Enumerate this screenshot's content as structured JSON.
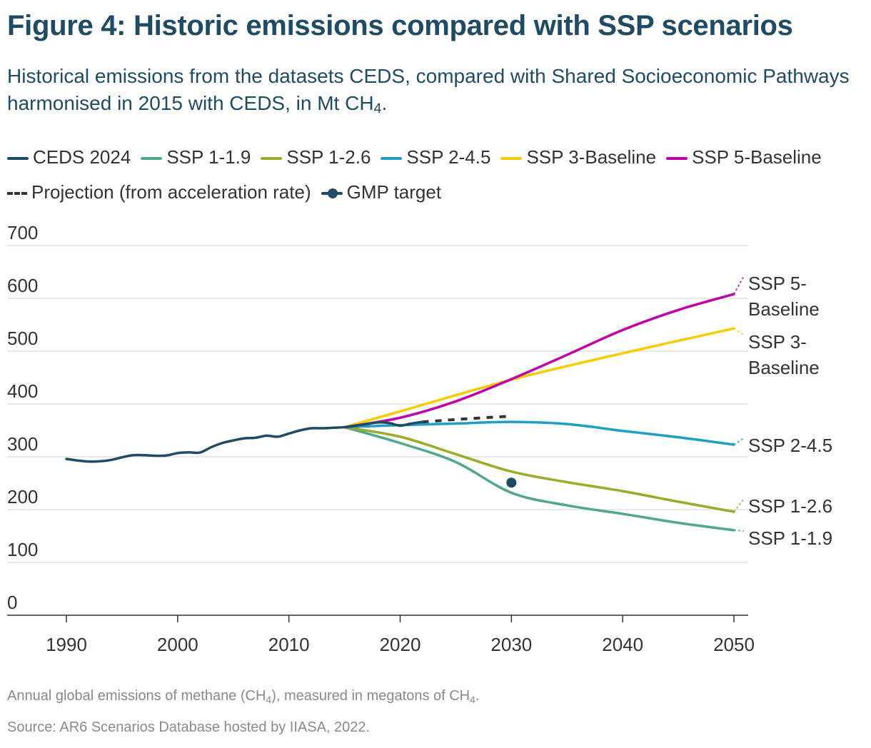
{
  "header": {
    "title": "Figure 4: Historic emissions compared with SSP scenarios",
    "subtitle_pre": "Historical emissions from the datasets CEDS, compared with Shared Socioeconomic Pathways harmonised in 2015 with CEDS, in Mt CH",
    "subtitle_sub": "4",
    "subtitle_post": "."
  },
  "footer": {
    "note_pre": "Annual global emissions of methane (CH",
    "note_sub1": "4",
    "note_mid": "), measured in megatons of CH",
    "note_sub2": "4",
    "note_post": ".",
    "source": "Source: AR6 Scenarios Database hosted by IIASA, 2022."
  },
  "chart_data": {
    "type": "line",
    "title": "Figure 4: Historic emissions compared with SSP scenarios",
    "xlabel": "",
    "ylabel": "",
    "xlim": [
      1990,
      2050
    ],
    "ylim": [
      0,
      700
    ],
    "xticks": [
      1990,
      2000,
      2010,
      2020,
      2030,
      2040,
      2050
    ],
    "yticks": [
      0,
      100,
      200,
      300,
      400,
      500,
      600,
      700
    ],
    "grid": "horizontal",
    "legend": "top",
    "series": [
      {
        "name": "CEDS 2024",
        "color": "#1f4b63",
        "style": "solid",
        "end_label": "",
        "x": [
          1990,
          1991,
          1992,
          1993,
          1994,
          1995,
          1996,
          1997,
          1998,
          1999,
          2000,
          2001,
          2002,
          2003,
          2004,
          2005,
          2006,
          2007,
          2008,
          2009,
          2010,
          2011,
          2012,
          2013,
          2014,
          2015,
          2016,
          2017,
          2018,
          2019,
          2020,
          2021,
          2022
        ],
        "y": [
          296,
          293,
          291,
          291.5,
          294,
          299,
          303,
          303,
          302,
          302.5,
          307,
          308.5,
          308,
          318,
          326,
          331,
          335,
          336,
          340,
          338,
          344,
          350,
          354,
          354,
          355,
          356,
          359,
          362,
          365,
          364,
          359,
          363,
          366
        ]
      },
      {
        "name": "SSP 1-1.9",
        "color": "#4fa88a",
        "style": "solid",
        "end_label": "SSP 1-1.9",
        "x": [
          2015,
          2020,
          2025,
          2030,
          2035,
          2040,
          2045,
          2050
        ],
        "y": [
          356,
          326,
          290,
          232,
          208,
          192,
          175,
          161
        ]
      },
      {
        "name": "SSP 1-2.6",
        "color": "#9aad2a",
        "style": "solid",
        "end_label": "SSP 1-2.6",
        "x": [
          2015,
          2020,
          2025,
          2030,
          2035,
          2040,
          2045,
          2050
        ],
        "y": [
          356,
          338,
          305,
          272,
          252,
          235,
          215,
          196
        ]
      },
      {
        "name": "SSP 2-4.5",
        "color": "#1f9fc4",
        "style": "solid",
        "end_label": "SSP 2-4.5",
        "x": [
          2015,
          2020,
          2025,
          2030,
          2035,
          2040,
          2045,
          2050
        ],
        "y": [
          356,
          360,
          363,
          366,
          362,
          349,
          337,
          323
        ]
      },
      {
        "name": "SSP 3-Baseline",
        "color": "#f5cc00",
        "style": "solid",
        "end_label": "SSP 3-Baseline",
        "x": [
          2015,
          2020,
          2030,
          2040,
          2050
        ],
        "y": [
          356,
          386,
          446,
          496,
          543
        ]
      },
      {
        "name": "SSP 5-Baseline",
        "color": "#c000a8",
        "style": "solid",
        "end_label": "SSP 5-Baseline",
        "x": [
          2015,
          2020,
          2025,
          2030,
          2035,
          2040,
          2045,
          2050
        ],
        "y": [
          356,
          374,
          405,
          447,
          493,
          540,
          578,
          608
        ]
      },
      {
        "name": "Projection (from acceleration rate)",
        "color": "#333333",
        "style": "dashed",
        "end_label": "",
        "x": [
          2022,
          2026,
          2030
        ],
        "y": [
          366,
          372,
          377
        ]
      }
    ],
    "points": [
      {
        "name": "GMP target",
        "color": "#1f4b63",
        "x": 2030,
        "y": 251
      }
    ]
  }
}
